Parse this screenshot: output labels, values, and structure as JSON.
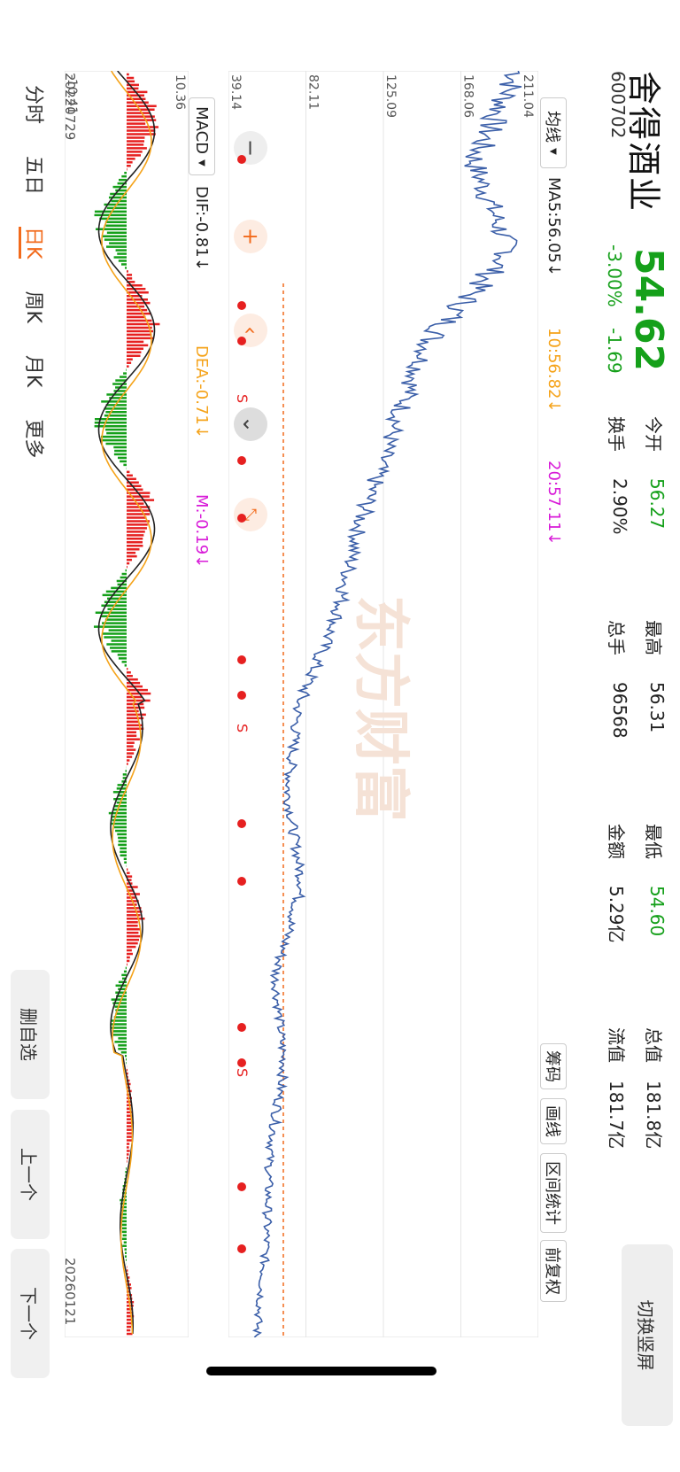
{
  "stock": {
    "name": "舍得酒业",
    "code": "600702",
    "price": "54.62",
    "change_pct": "-3.00%",
    "change_amt": "-1.69"
  },
  "stats": {
    "open_label": "今开",
    "open_value": "56.27",
    "turnover_label": "换手",
    "turnover_value": "2.90%",
    "high_label": "最高",
    "high_value": "56.31",
    "volume_label": "总手",
    "volume_value": "96568",
    "low_label": "最低",
    "low_value": "54.60",
    "amount_label": "金额",
    "amount_value": "5.29亿",
    "mktcap_label": "总值",
    "mktcap_value": "181.8亿",
    "float_label": "流值",
    "float_value": "181.7亿"
  },
  "buttons": {
    "switch_portrait": "切换竖屏",
    "chips": "筹码",
    "draw_line": "画线",
    "range_stats": "区间统计",
    "adjust": "前复权",
    "delete_favorite": "删自选",
    "prev": "上一个",
    "next": "下一个"
  },
  "ma": {
    "selector": "均线",
    "ma5": "MA5:56.05↓",
    "ma10": "10:56.82↓",
    "ma20": "20:57.11↓"
  },
  "macd": {
    "selector": "MACD",
    "dif": "DIF:-0.81↓",
    "dea": "DEA:-0.71↓",
    "m": "M:-0.19↓"
  },
  "axis": {
    "price_ticks": [
      "211.04",
      "168.06",
      "125.09",
      "82.11",
      "39.14"
    ],
    "macd_ticks": [
      "10.36",
      "-10.41"
    ],
    "start_date": "20220729",
    "end_date": "20260121"
  },
  "period_tabs": [
    "分时",
    "五日",
    "日K",
    "周K",
    "月K",
    "更多"
  ],
  "active_tab": "日K",
  "signals": {
    "s_label": "S"
  },
  "watermark": "东方财富",
  "colors": {
    "up": "#e62020",
    "down": "#15a01a",
    "accent": "#f26a1b",
    "price_line": "#3a5ea8",
    "dif": "#222222",
    "dea": "#f5a31a",
    "m": "#d81bd8"
  },
  "chart_data": {
    "type": "line",
    "title": "",
    "x_range": [
      "20220729",
      "20260121"
    ],
    "ylim": [
      39.14,
      211.04
    ],
    "price_series": [
      {
        "name": "",
        "x": [
          "20220729",
          "20221015",
          "20230101",
          "20230401",
          "20230701",
          "20231001",
          "20240101",
          "20240401",
          "20240701",
          "20241001",
          "20250101",
          "20250401",
          "20250701",
          "20251001",
          "20260121"
        ],
        "values": [
          200,
          175,
          195,
          150,
          130,
          112,
          100,
          78,
          72,
          80,
          65,
          70,
          62,
          60,
          54.62
        ]
      }
    ]
  }
}
